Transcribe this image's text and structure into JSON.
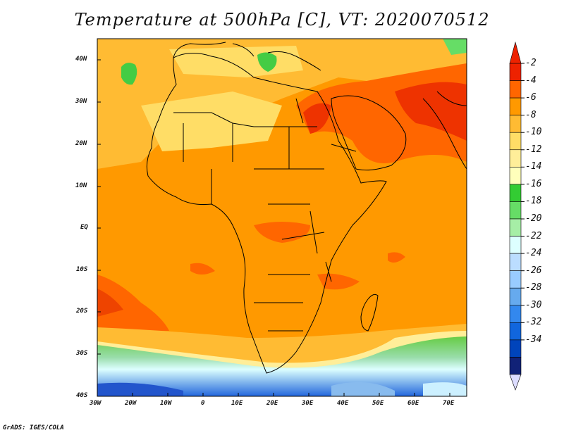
{
  "title": "Temperature at 500hPa [C], VT: 2020070512",
  "footer": "GrADS: IGES/COLA",
  "map": {
    "lon_range": [
      -30,
      75
    ],
    "lat_range": [
      -40,
      45
    ],
    "lat_ticks": [
      "40N",
      "30N",
      "20N",
      "10N",
      "EQ",
      "10S",
      "20S",
      "30S",
      "40S"
    ],
    "lon_ticks": [
      "30W",
      "20W",
      "10W",
      "0",
      "10E",
      "20E",
      "30E",
      "40E",
      "50E",
      "60E",
      "70E"
    ]
  },
  "colorbar": {
    "labels": [
      "-2",
      "-4",
      "-6",
      "-8",
      "-10",
      "-12",
      "-14",
      "-16",
      "-18",
      "-20",
      "-22",
      "-24",
      "-26",
      "-28",
      "-30",
      "-32",
      "-34"
    ],
    "colors": [
      "#ee2200",
      "#ff6600",
      "#ff9900",
      "#ffbb33",
      "#ffdd66",
      "#ffee99",
      "#ffffbb",
      "#33cc33",
      "#66dd66",
      "#a6eea6",
      "#ddffff",
      "#bbddff",
      "#99ccff",
      "#66aaee",
      "#3388ee",
      "#1166dd",
      "#0044bb",
      "#112277"
    ]
  }
}
